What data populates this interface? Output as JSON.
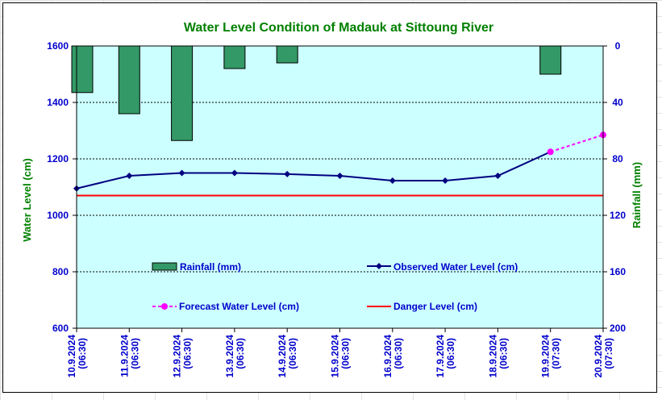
{
  "colors": {
    "plot_bg": "#ccffff",
    "title": "#008000",
    "axis_text": "#0000cc",
    "rain_fill": "#339966",
    "observed": "#000080",
    "forecast": "#ff00ff",
    "danger": "#ff0000"
  },
  "chart_data": {
    "type": "line",
    "title": "Water Level Condition of Madauk at Sittoung River",
    "xlabel": "",
    "ylabel": "Water Level (cm)",
    "y2label": "Rainfall (mm)",
    "ylim": [
      600,
      1600
    ],
    "y2lim": [
      0,
      200
    ],
    "y2_inverted": true,
    "yticks": [
      "600",
      "800",
      "1000",
      "1200",
      "1400",
      "1600"
    ],
    "y2ticks": [
      "0",
      "40",
      "80",
      "120",
      "160",
      "200"
    ],
    "categories": [
      [
        "10.9.2024",
        "(06:30)"
      ],
      [
        "11.9.2024",
        "(06:30)"
      ],
      [
        "12.9.2024",
        "(06:30)"
      ],
      [
        "13.9.2024",
        "(06:30)"
      ],
      [
        "14.9.2024",
        "(06:30)"
      ],
      [
        "15.9.2024",
        "(06:30)"
      ],
      [
        "16.9.2024",
        "(06:30)"
      ],
      [
        "17.9.2024",
        "(06:30)"
      ],
      [
        "18.9.2024",
        "(06:30)"
      ],
      [
        "19.9.2024",
        "(07:30)"
      ],
      [
        "20.9.2024",
        "(07:30)"
      ]
    ],
    "grid": true,
    "series": [
      {
        "name": "Rainfall (mm)",
        "type": "bar",
        "axis": "right",
        "values": [
          33,
          48,
          67,
          16,
          12,
          null,
          null,
          null,
          null,
          20,
          null
        ]
      },
      {
        "name": "Observed Water Level (cm)",
        "type": "line",
        "values": [
          1095,
          1140,
          1150,
          1150,
          1146,
          1140,
          1123,
          1123,
          1140,
          1225,
          null
        ]
      },
      {
        "name": "Forecast Water Level (cm)",
        "type": "line",
        "style": "dashed",
        "values": [
          null,
          null,
          null,
          null,
          null,
          null,
          null,
          null,
          null,
          1225,
          1285
        ]
      },
      {
        "name": "Danger Level (cm)",
        "type": "line",
        "values": [
          1070,
          1070,
          1070,
          1070,
          1070,
          1070,
          1070,
          1070,
          1070,
          1070,
          1070
        ]
      }
    ]
  }
}
